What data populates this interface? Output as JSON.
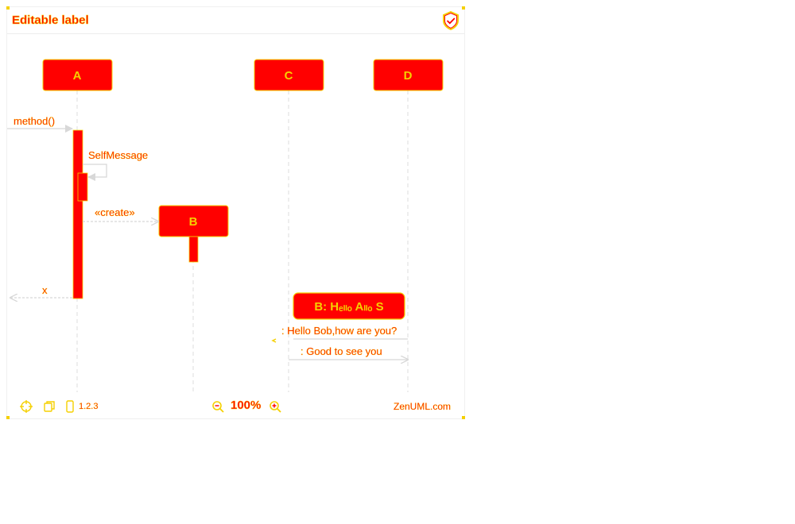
{
  "window": {
    "title": "Editable label"
  },
  "colors": {
    "accent": "#ff0000",
    "outline": "#f5d000",
    "lifeline": "#dcdcdc",
    "arrow": "#d8d8d8"
  },
  "icons": {
    "shield": "shield-check-icon",
    "fit": "crosshair-icon",
    "copy": "copy-icon",
    "mobile": "mobile-icon",
    "zoom_out": "zoom-out-icon",
    "zoom_in": "zoom-in-icon"
  },
  "participants": [
    {
      "id": "A",
      "label": "A"
    },
    {
      "id": "B",
      "label": "B"
    },
    {
      "id": "C",
      "label": "C"
    },
    {
      "id": "D",
      "label": "D"
    }
  ],
  "messages": {
    "method": "method()",
    "self": "SelfMessage",
    "create": "«create»",
    "return": "x",
    "fragment": "B: Hₑₗₗₒ Aₗₗₒ S",
    "hello": ": Hello Bob,how are you?",
    "good": ": Good to see you"
  },
  "footer": {
    "version": "1.2.3",
    "zoom": "100%",
    "brand": "ZenUML.com"
  }
}
